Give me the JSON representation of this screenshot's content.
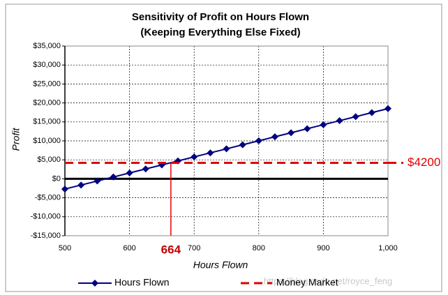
{
  "chart_data": {
    "type": "line",
    "title": "Sensitivity of Profit on Hours Flown",
    "subtitle": "(Keeping Everything Else Fixed)",
    "x_label": "Hours Flown",
    "y_label": "Profit",
    "xlim": [
      500,
      1000
    ],
    "ylim": [
      -15000,
      35000
    ],
    "xticks": [
      500,
      600,
      700,
      800,
      900,
      {
        "value": 1000,
        "label": "1,000"
      }
    ],
    "yticks": [
      {
        "value": -15000,
        "label": "-$15,000"
      },
      {
        "value": -10000,
        "label": "-$10,000"
      },
      {
        "value": -5000,
        "label": "-$5,000"
      },
      {
        "value": 0,
        "label": "$0"
      },
      {
        "value": 5000,
        "label": "$5,000"
      },
      {
        "value": 10000,
        "label": "$10,000"
      },
      {
        "value": 15000,
        "label": "$15,000"
      },
      {
        "value": 20000,
        "label": "$20,000"
      },
      {
        "value": 25000,
        "label": "$25,000"
      },
      {
        "value": 30000,
        "label": "$30,000"
      },
      {
        "value": 35000,
        "label": "$35,000"
      }
    ],
    "grid": true,
    "series": [
      {
        "name": "Hours Flown",
        "color": "#000080",
        "x": [
          500,
          525,
          550,
          575,
          600,
          625,
          650,
          675,
          700,
          725,
          750,
          775,
          800,
          825,
          850,
          875,
          900,
          925,
          950,
          975,
          1000
        ],
        "values": [
          -2700,
          -1640,
          -580,
          480,
          1540,
          2600,
          3660,
          4720,
          5780,
          6840,
          7900,
          8960,
          10020,
          11080,
          12140,
          13200,
          14260,
          15320,
          16380,
          17440,
          18500
        ]
      },
      {
        "name": "Money Market",
        "color": "#e00000",
        "x": [
          500,
          1000
        ],
        "values": [
          4200,
          4200
        ]
      }
    ],
    "annotations": [
      {
        "text": "$4200",
        "value": 4200
      },
      {
        "text": "664",
        "value": 664
      }
    ],
    "watermark": "https://blog.csdn.net/royce_feng"
  }
}
